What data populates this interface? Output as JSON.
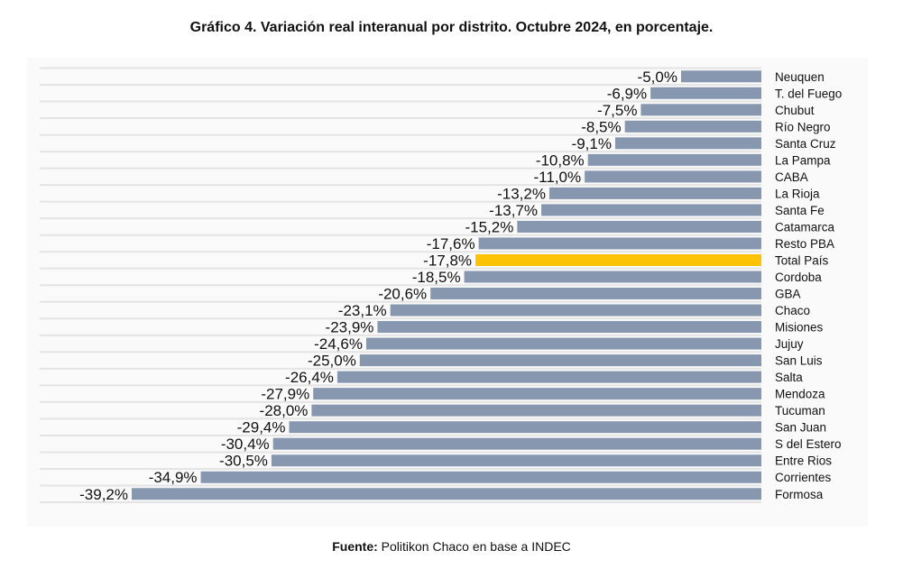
{
  "chart_data": {
    "type": "bar",
    "orientation": "horizontal",
    "title": "Gráfico 4. Variación real interanual por distrito. Octubre 2024, en porcentaje.",
    "source_label": "Fuente:",
    "source_text": " Politikon Chaco en base a INDEC",
    "categories": [
      "Neuquen",
      "T. del Fuego",
      "Chubut",
      "Río Negro",
      "Santa Cruz",
      "La Pampa",
      "CABA",
      "La Rioja",
      "Santa Fe",
      "Catamarca",
      "Resto PBA",
      "Total País",
      "Cordoba",
      "GBA",
      "Chaco",
      "Misiones",
      "Jujuy",
      "San Luis",
      "Salta",
      "Mendoza",
      "Tucuman",
      "San Juan",
      "S del Estero",
      "Entre Rios",
      "Corrientes",
      "Formosa"
    ],
    "values": [
      -5.0,
      -6.9,
      -7.5,
      -8.5,
      -9.1,
      -10.8,
      -11.0,
      -13.2,
      -13.7,
      -15.2,
      -17.6,
      -17.8,
      -18.5,
      -20.6,
      -23.1,
      -23.9,
      -24.6,
      -25.0,
      -26.4,
      -27.9,
      -28.0,
      -29.4,
      -30.4,
      -30.5,
      -34.9,
      -39.2
    ],
    "labels": [
      "-5,0%",
      "-6,9%",
      "-7,5%",
      "-8,5%",
      "-9,1%",
      "-10,8%",
      "-11,0%",
      "-13,2%",
      "-13,7%",
      "-15,2%",
      "-17,6%",
      "-17,8%",
      "-18,5%",
      "-20,6%",
      "-23,1%",
      "-23,9%",
      "-24,6%",
      "-25,0%",
      "-26,4%",
      "-27,9%",
      "-28,0%",
      "-29,4%",
      "-30,4%",
      "-30,5%",
      "-34,9%",
      "-39,2%"
    ],
    "highlight": "Total País",
    "colors": {
      "bar": "#8797b0",
      "highlight": "#fdc300",
      "grid": "#e4e4e4"
    },
    "xlim": [
      -39.2,
      0
    ]
  }
}
